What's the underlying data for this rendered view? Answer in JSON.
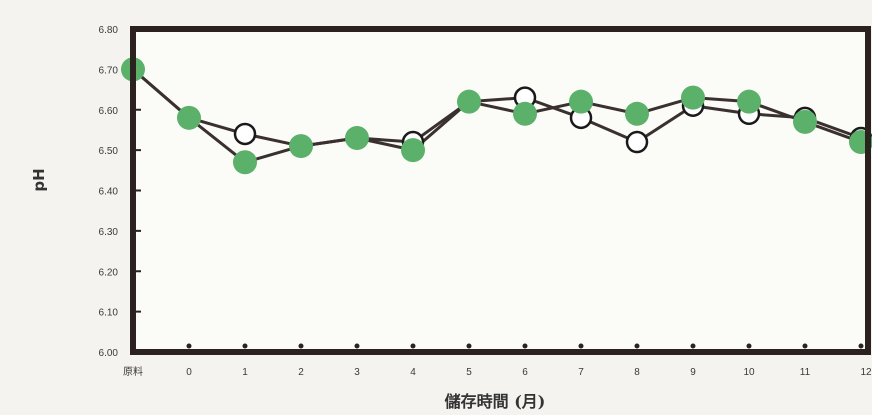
{
  "chart_data": {
    "type": "line",
    "title": "",
    "xlabel": "儲存時間 (月)",
    "ylabel": "pH",
    "categories": [
      "原料",
      "0",
      "1",
      "2",
      "3",
      "4",
      "5",
      "6",
      "7",
      "8",
      "9",
      "10",
      "11",
      "12"
    ],
    "yticks": [
      "6.00",
      "6.10",
      "6.20",
      "6.30",
      "6.40",
      "6.50",
      "6.60",
      "6.70",
      "6.80"
    ],
    "ylim": [
      6.0,
      6.8
    ],
    "grid": false,
    "legend": "none",
    "series": [
      {
        "marker": "open-circle",
        "color": "#1a1a1a",
        "values": [
          6.7,
          6.58,
          6.54,
          6.51,
          6.53,
          6.52,
          6.62,
          6.63,
          6.58,
          6.52,
          6.61,
          6.59,
          6.58,
          6.53
        ]
      },
      {
        "marker": "filled-circle",
        "color": "#5bb06a",
        "values": [
          6.7,
          6.58,
          6.47,
          6.51,
          6.53,
          6.5,
          6.62,
          6.59,
          6.62,
          6.59,
          6.63,
          6.62,
          6.57,
          6.52
        ]
      }
    ],
    "colors": {
      "frame": "#2b2220",
      "plot_bg": "#fbfbf8",
      "page_bg": "#f4f3ef"
    }
  }
}
